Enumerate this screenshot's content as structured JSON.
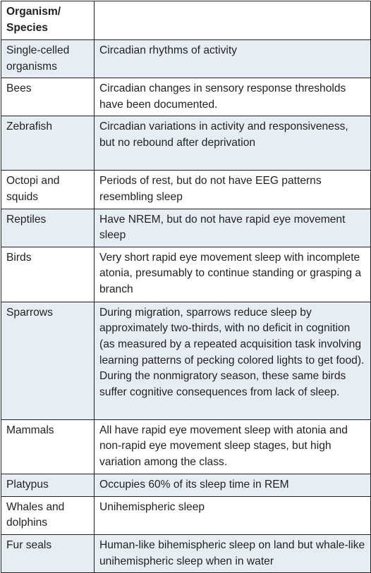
{
  "table": {
    "header": {
      "col1": "Organism/ Species",
      "col2": ""
    },
    "rows": [
      {
        "organism": "Single-celled organisms",
        "description": "Circadian rhythms of activity"
      },
      {
        "organism": "Bees",
        "description": "Circadian changes in sensory response thresholds have been documented."
      },
      {
        "organism": "Zebrafish",
        "description": "Circadian variations in activity and responsiveness, but no rebound after deprivation"
      },
      {
        "organism": "Octopi and squids",
        "description": "Periods of rest, but do not have EEG patterns resembling sleep"
      },
      {
        "organism": "Reptiles",
        "description": "Have NREM, but do not have rapid eye movement sleep"
      },
      {
        "organism": "Birds",
        "description": "Very short rapid eye movement sleep with incomplete atonia, presumably to continue standing or grasping a branch"
      },
      {
        "organism": "Sparrows",
        "description": "During migration, sparrows reduce sleep by approximately two-thirds, with no deficit in cognition (as measured by a repeated acquisition task involving learning patterns of pecking colored lights to get food). During the nonmigratory season, these same birds suffer cognitive consequences from lack of sleep."
      },
      {
        "organism": "Mammals",
        "description": "All have rapid eye movement sleep with atonia and non-rapid eye movement sleep stages, but high variation among the class."
      },
      {
        "organism": "Platypus",
        "description": "Occupies 60% of its sleep time in REM"
      },
      {
        "organism": "Whales and dolphins",
        "description": "Unihemispheric sleep"
      },
      {
        "organism": "Fur seals",
        "description": "Human-like bihemispheric sleep on land but whale-like unihemispheric sleep when in water"
      }
    ]
  },
  "colors": {
    "row_shaded": "#e6eef3",
    "row_plain": "#ffffff",
    "border": "#231f20",
    "text": "#231f20"
  }
}
